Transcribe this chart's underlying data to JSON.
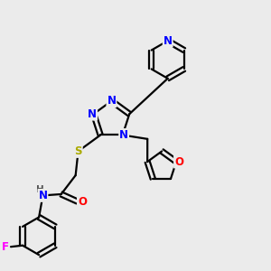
{
  "bg_color": "#ebebeb",
  "bond_color": "#000000",
  "bond_width": 1.6,
  "atom_colors": {
    "N": "#0000ff",
    "O": "#ff0000",
    "S": "#aaaa00",
    "F": "#ff00ff",
    "C": "#000000",
    "H": "#555555"
  },
  "font_size_atom": 8.5
}
